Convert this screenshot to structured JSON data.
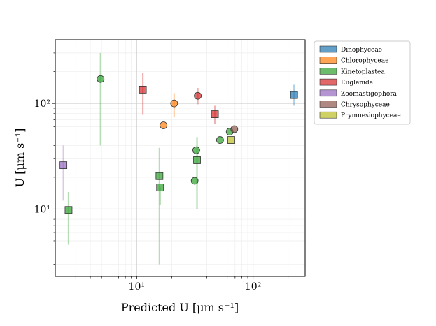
{
  "chart_data": {
    "type": "scatter",
    "title": "",
    "xlabel": "Predicted U [μm s⁻¹]",
    "ylabel": "U [μm s⁻¹]",
    "xscale": "log",
    "yscale": "log",
    "xlim": [
      2.0,
      280
    ],
    "ylim": [
      2.3,
      400
    ],
    "xticks": [
      {
        "value": 10,
        "label": "10¹"
      },
      {
        "value": 100,
        "label": "10²"
      }
    ],
    "yticks": [
      {
        "value": 10,
        "label": "10¹"
      },
      {
        "value": 100,
        "label": "10²"
      }
    ],
    "grid": true,
    "legend_position": "outside-right",
    "series": [
      {
        "name": "Dinophyceae",
        "color": "#1f77b4",
        "points": [
          {
            "x": 225,
            "y": 120,
            "marker": "square",
            "err": [
              95,
              150
            ]
          }
        ]
      },
      {
        "name": "Chlorophyceae",
        "color": "#ff7f0e",
        "points": [
          {
            "x": 21,
            "y": 100,
            "marker": "circle",
            "err": [
              74,
              125
            ]
          },
          {
            "x": 17,
            "y": 62,
            "marker": "circle",
            "err": null
          }
        ]
      },
      {
        "name": "Kinetoplastea",
        "color": "#2ca02c",
        "points": [
          {
            "x": 4.9,
            "y": 170,
            "marker": "circle",
            "err": [
              40,
              300
            ]
          },
          {
            "x": 2.6,
            "y": 9.8,
            "marker": "square",
            "err": [
              4.6,
              14.5
            ]
          },
          {
            "x": 15.7,
            "y": 20.5,
            "marker": "square",
            "err": [
              3.0,
              38
            ]
          },
          {
            "x": 15.9,
            "y": 16,
            "marker": "square",
            "err": [
              11,
              16
            ]
          },
          {
            "x": 33,
            "y": 29,
            "marker": "square",
            "err": [
              10,
              48
            ]
          },
          {
            "x": 32.5,
            "y": 36,
            "marker": "circle",
            "err": null
          },
          {
            "x": 31.5,
            "y": 18.5,
            "marker": "circle",
            "err": null
          },
          {
            "x": 52,
            "y": 45,
            "marker": "circle",
            "err": null
          },
          {
            "x": 63,
            "y": 54,
            "marker": "circle",
            "err": null
          }
        ]
      },
      {
        "name": "Euglenida",
        "color": "#d62728",
        "points": [
          {
            "x": 11.3,
            "y": 135,
            "marker": "square",
            "err": [
              78,
              195
            ]
          },
          {
            "x": 33.5,
            "y": 118,
            "marker": "circle",
            "err": [
              98,
              140
            ]
          },
          {
            "x": 47,
            "y": 79,
            "marker": "square",
            "err": [
              64,
              95
            ]
          }
        ]
      },
      {
        "name": "Zoomastigophora",
        "color": "#9467bd",
        "points": [
          {
            "x": 2.35,
            "y": 26,
            "marker": "square",
            "err": [
              12,
              40
            ]
          }
        ]
      },
      {
        "name": "Chrysophyceae",
        "color": "#8c564b",
        "points": [
          {
            "x": 69,
            "y": 57,
            "marker": "circle",
            "err": null
          }
        ]
      },
      {
        "name": "Prymnesiophyceae",
        "color": "#bcbd22",
        "points": [
          {
            "x": 65,
            "y": 45,
            "marker": "square",
            "err": null
          }
        ]
      }
    ]
  }
}
